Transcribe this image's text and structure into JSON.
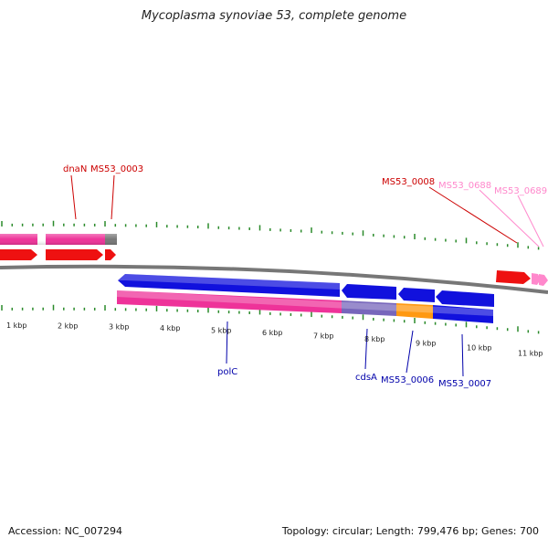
{
  "title": "Mycoplasma synoviae 53, complete genome",
  "footer": {
    "accession": "Accession: NC_007294",
    "summary": "Topology: circular; Length: 799,476 bp; Genes: 700"
  },
  "colors": {
    "tick": "#2a8a2a",
    "backbone": "#777777",
    "red_gene": "#ee1111",
    "pink_gene": "#ff88cc",
    "magenta_gene": "#ee3399",
    "blue_gene": "#1111dd",
    "purple_gene": "#7766bb",
    "orange_gene": "#ff9911",
    "gray_gene": "#777777",
    "red_label": "#cc0000",
    "pink_label": "#ff88cc",
    "blue_label": "#0000aa"
  },
  "scale_labels": [
    "1 kbp",
    "2 kbp",
    "3 kbp",
    "4 kbp",
    "5 kbp",
    "6 kbp",
    "7 kbp",
    "8 kbp",
    "9 kbp",
    "10 kbp",
    "11 kbp"
  ],
  "gene_labels_top": [
    {
      "name": "dnaN",
      "color": "red"
    },
    {
      "name": "MS53_0003",
      "color": "red"
    },
    {
      "name": "MS53_0008",
      "color": "red"
    },
    {
      "name": "MS53_0688",
      "color": "pink"
    },
    {
      "name": "MS53_0689",
      "color": "pink"
    }
  ],
  "gene_labels_bottom": [
    {
      "name": "polC",
      "color": "blue"
    },
    {
      "name": "cdsA",
      "color": "blue"
    },
    {
      "name": "MS53_0006",
      "color": "blue"
    },
    {
      "name": "MS53_0007",
      "color": "blue"
    }
  ]
}
